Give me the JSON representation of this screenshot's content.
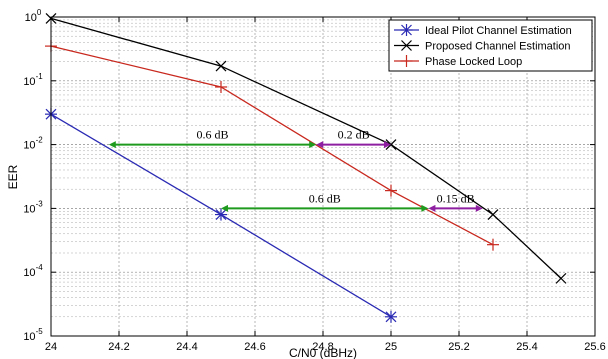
{
  "chart_data": {
    "type": "line",
    "title": "",
    "xlabel": "C/N0 (dBHz)",
    "ylabel": "EER",
    "x_scale": "linear",
    "y_scale": "log",
    "xlim": [
      24,
      25.6
    ],
    "ylim": [
      1e-05,
      1
    ],
    "grid": true,
    "legend_position": "top-right",
    "x_ticks": [
      24,
      24.2,
      24.4,
      24.6,
      24.8,
      25,
      25.2,
      25.4,
      25.6
    ],
    "x_tick_labels": [
      "24",
      "24.2",
      "24.4",
      "24.6",
      "24.8",
      "25",
      "25.2",
      "25.4",
      "25.6"
    ],
    "y_ticks": [
      1e-05,
      0.0001,
      0.001,
      0.01,
      0.1,
      1
    ],
    "y_tick_exponents": [
      "-5",
      "-4",
      "-3",
      "-2",
      "-1",
      "0"
    ],
    "series": [
      {
        "name": "Ideal Pilot Channel Estimation",
        "color": "#2a2ab4",
        "marker": "asterisk",
        "x": [
          24,
          24.5,
          25
        ],
        "y": [
          0.03,
          0.0008,
          2e-05
        ]
      },
      {
        "name": "Proposed Channel Estimation",
        "color": "#000000",
        "marker": "x",
        "x": [
          24,
          24.5,
          25,
          25.3,
          25.5
        ],
        "y": [
          0.95,
          0.17,
          0.01,
          0.0008,
          8e-05
        ]
      },
      {
        "name": "Phase Locked Loop",
        "color": "#c8281e",
        "marker": "plus",
        "x": [
          24,
          24.5,
          25,
          25.3
        ],
        "y": [
          0.35,
          0.08,
          0.0019,
          0.00027
        ]
      }
    ],
    "annotations": [
      {
        "text": "0.6 dB",
        "x1": 24.17,
        "x2": 24.78,
        "y": 0.01,
        "color": "#1f9a1f"
      },
      {
        "text": "0.2 dB",
        "x1": 24.78,
        "x2": 25.0,
        "y": 0.01,
        "color": "#8e1fa0"
      },
      {
        "text": "0.6 dB",
        "x1": 24.5,
        "x2": 25.11,
        "y": 0.001,
        "color": "#1f9a1f"
      },
      {
        "text": "0.15 dB",
        "x1": 25.11,
        "x2": 25.27,
        "y": 0.001,
        "color": "#8e1fa0"
      }
    ]
  }
}
